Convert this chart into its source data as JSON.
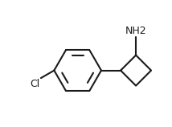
{
  "background_color": "#ffffff",
  "line_color": "#1a1a1a",
  "line_width": 1.5,
  "font_size_nh2": 9,
  "font_size_cl": 9,
  "nh2_label": "NH2",
  "cl_label": "Cl",
  "figsize": [
    2.14,
    1.58
  ],
  "dpi": 100
}
